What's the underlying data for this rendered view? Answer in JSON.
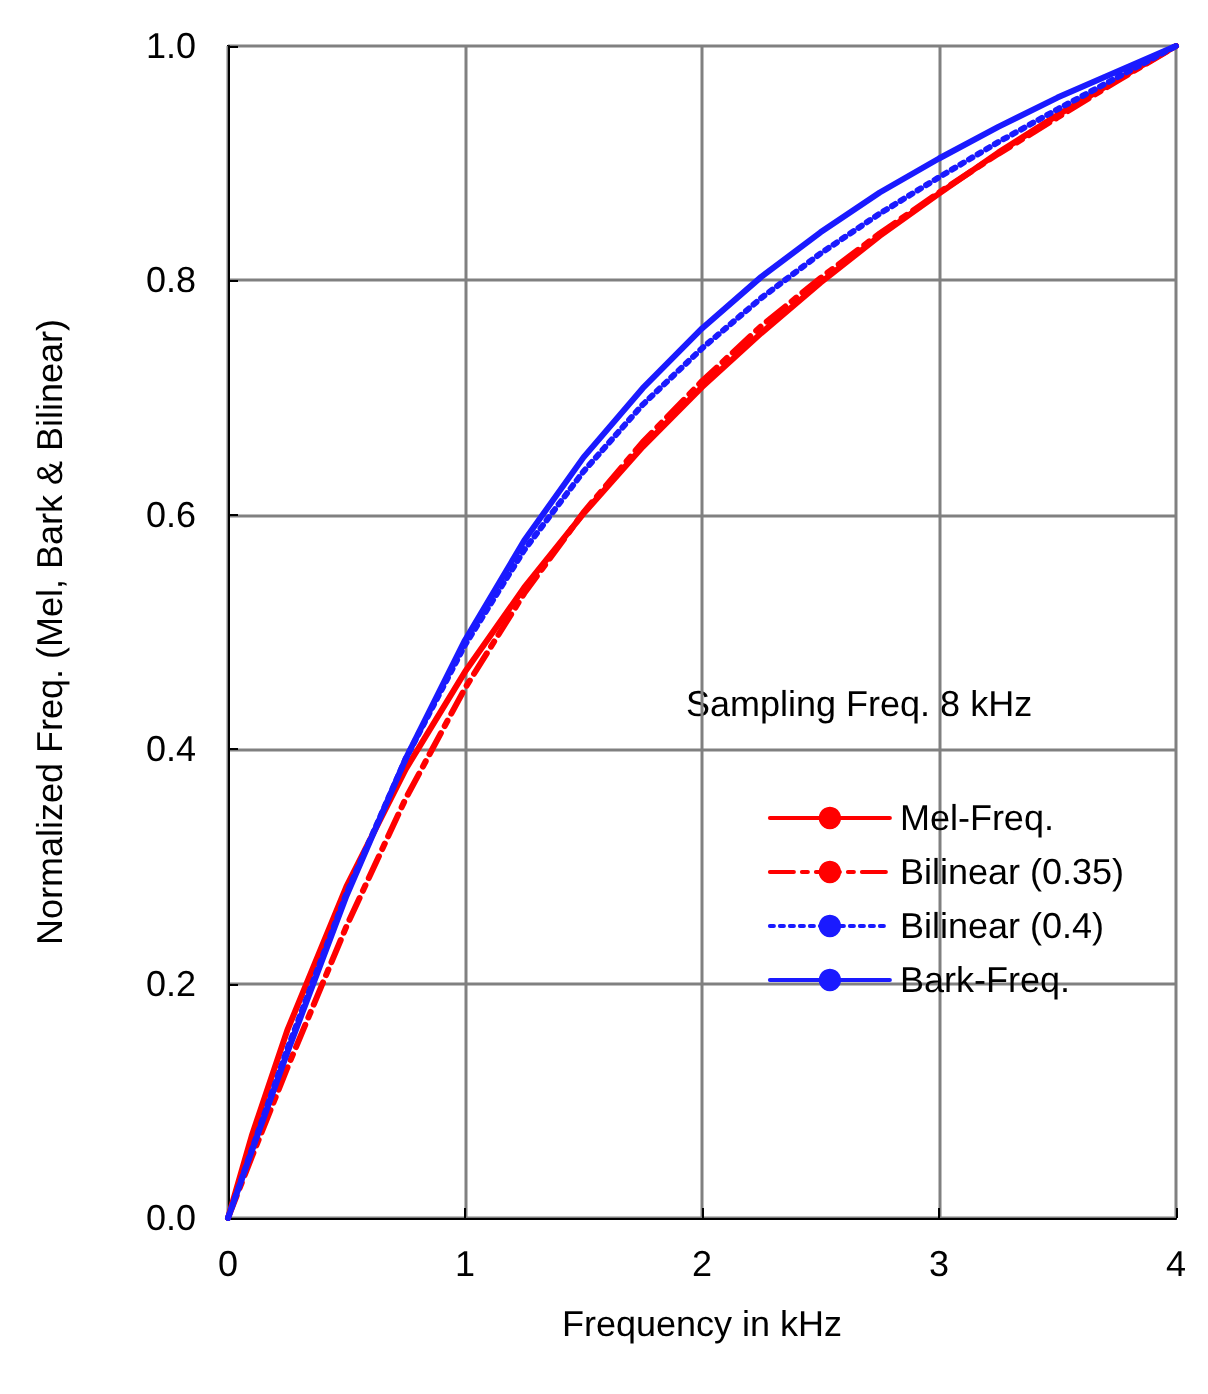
{
  "chart_data": {
    "type": "line",
    "xlabel": "Frequency in kHz",
    "ylabel": "Normalized Freq. (Mel, Bark & Bilinear)",
    "legend_title": "Sampling Freq. 8 kHz",
    "x": [
      0,
      0.1,
      0.25,
      0.5,
      0.75,
      1,
      1.25,
      1.5,
      1.75,
      2,
      2.25,
      2.5,
      2.75,
      3,
      3.25,
      3.5,
      3.75,
      4
    ],
    "series": [
      {
        "name": "Mel-Freq.",
        "color": "#ff0000",
        "line_style": "solid",
        "values": [
          0,
          0.07,
          0.16,
          0.283,
          0.383,
          0.466,
          0.538,
          0.601,
          0.658,
          0.709,
          0.755,
          0.798,
          0.838,
          0.874,
          0.909,
          0.941,
          0.971,
          1
        ]
      },
      {
        "name": "Bilinear (0.35)",
        "color": "#ff0000",
        "line_style": "dashdot",
        "values": [
          0,
          0.052,
          0.128,
          0.249,
          0.358,
          0.452,
          0.533,
          0.602,
          0.662,
          0.714,
          0.761,
          0.802,
          0.84,
          0.875,
          0.908,
          0.939,
          0.97,
          1
        ]
      },
      {
        "name": "Bilinear (0.4)",
        "color": "#1a1aff",
        "line_style": "dotted",
        "values": [
          0,
          0.058,
          0.144,
          0.277,
          0.392,
          0.489,
          0.57,
          0.637,
          0.694,
          0.742,
          0.785,
          0.823,
          0.857,
          0.888,
          0.918,
          0.946,
          0.973,
          1
        ]
      },
      {
        "name": "Bark-Freq.",
        "color": "#1a1aff",
        "line_style": "solid",
        "values": [
          0,
          0.057,
          0.141,
          0.275,
          0.392,
          0.493,
          0.578,
          0.649,
          0.708,
          0.759,
          0.803,
          0.841,
          0.875,
          0.904,
          0.931,
          0.956,
          0.978,
          1
        ]
      }
    ],
    "xlim": [
      0,
      4
    ],
    "xticks": [
      0,
      1,
      2,
      3,
      4
    ],
    "ylim": [
      0,
      1
    ],
    "yticks": [
      {
        "value": 0,
        "label": "0.0"
      },
      0.2,
      0.4,
      0.6,
      0.8,
      {
        "value": 1,
        "label": "1.0"
      }
    ],
    "grid": true,
    "legend": "right",
    "marker": "none"
  }
}
